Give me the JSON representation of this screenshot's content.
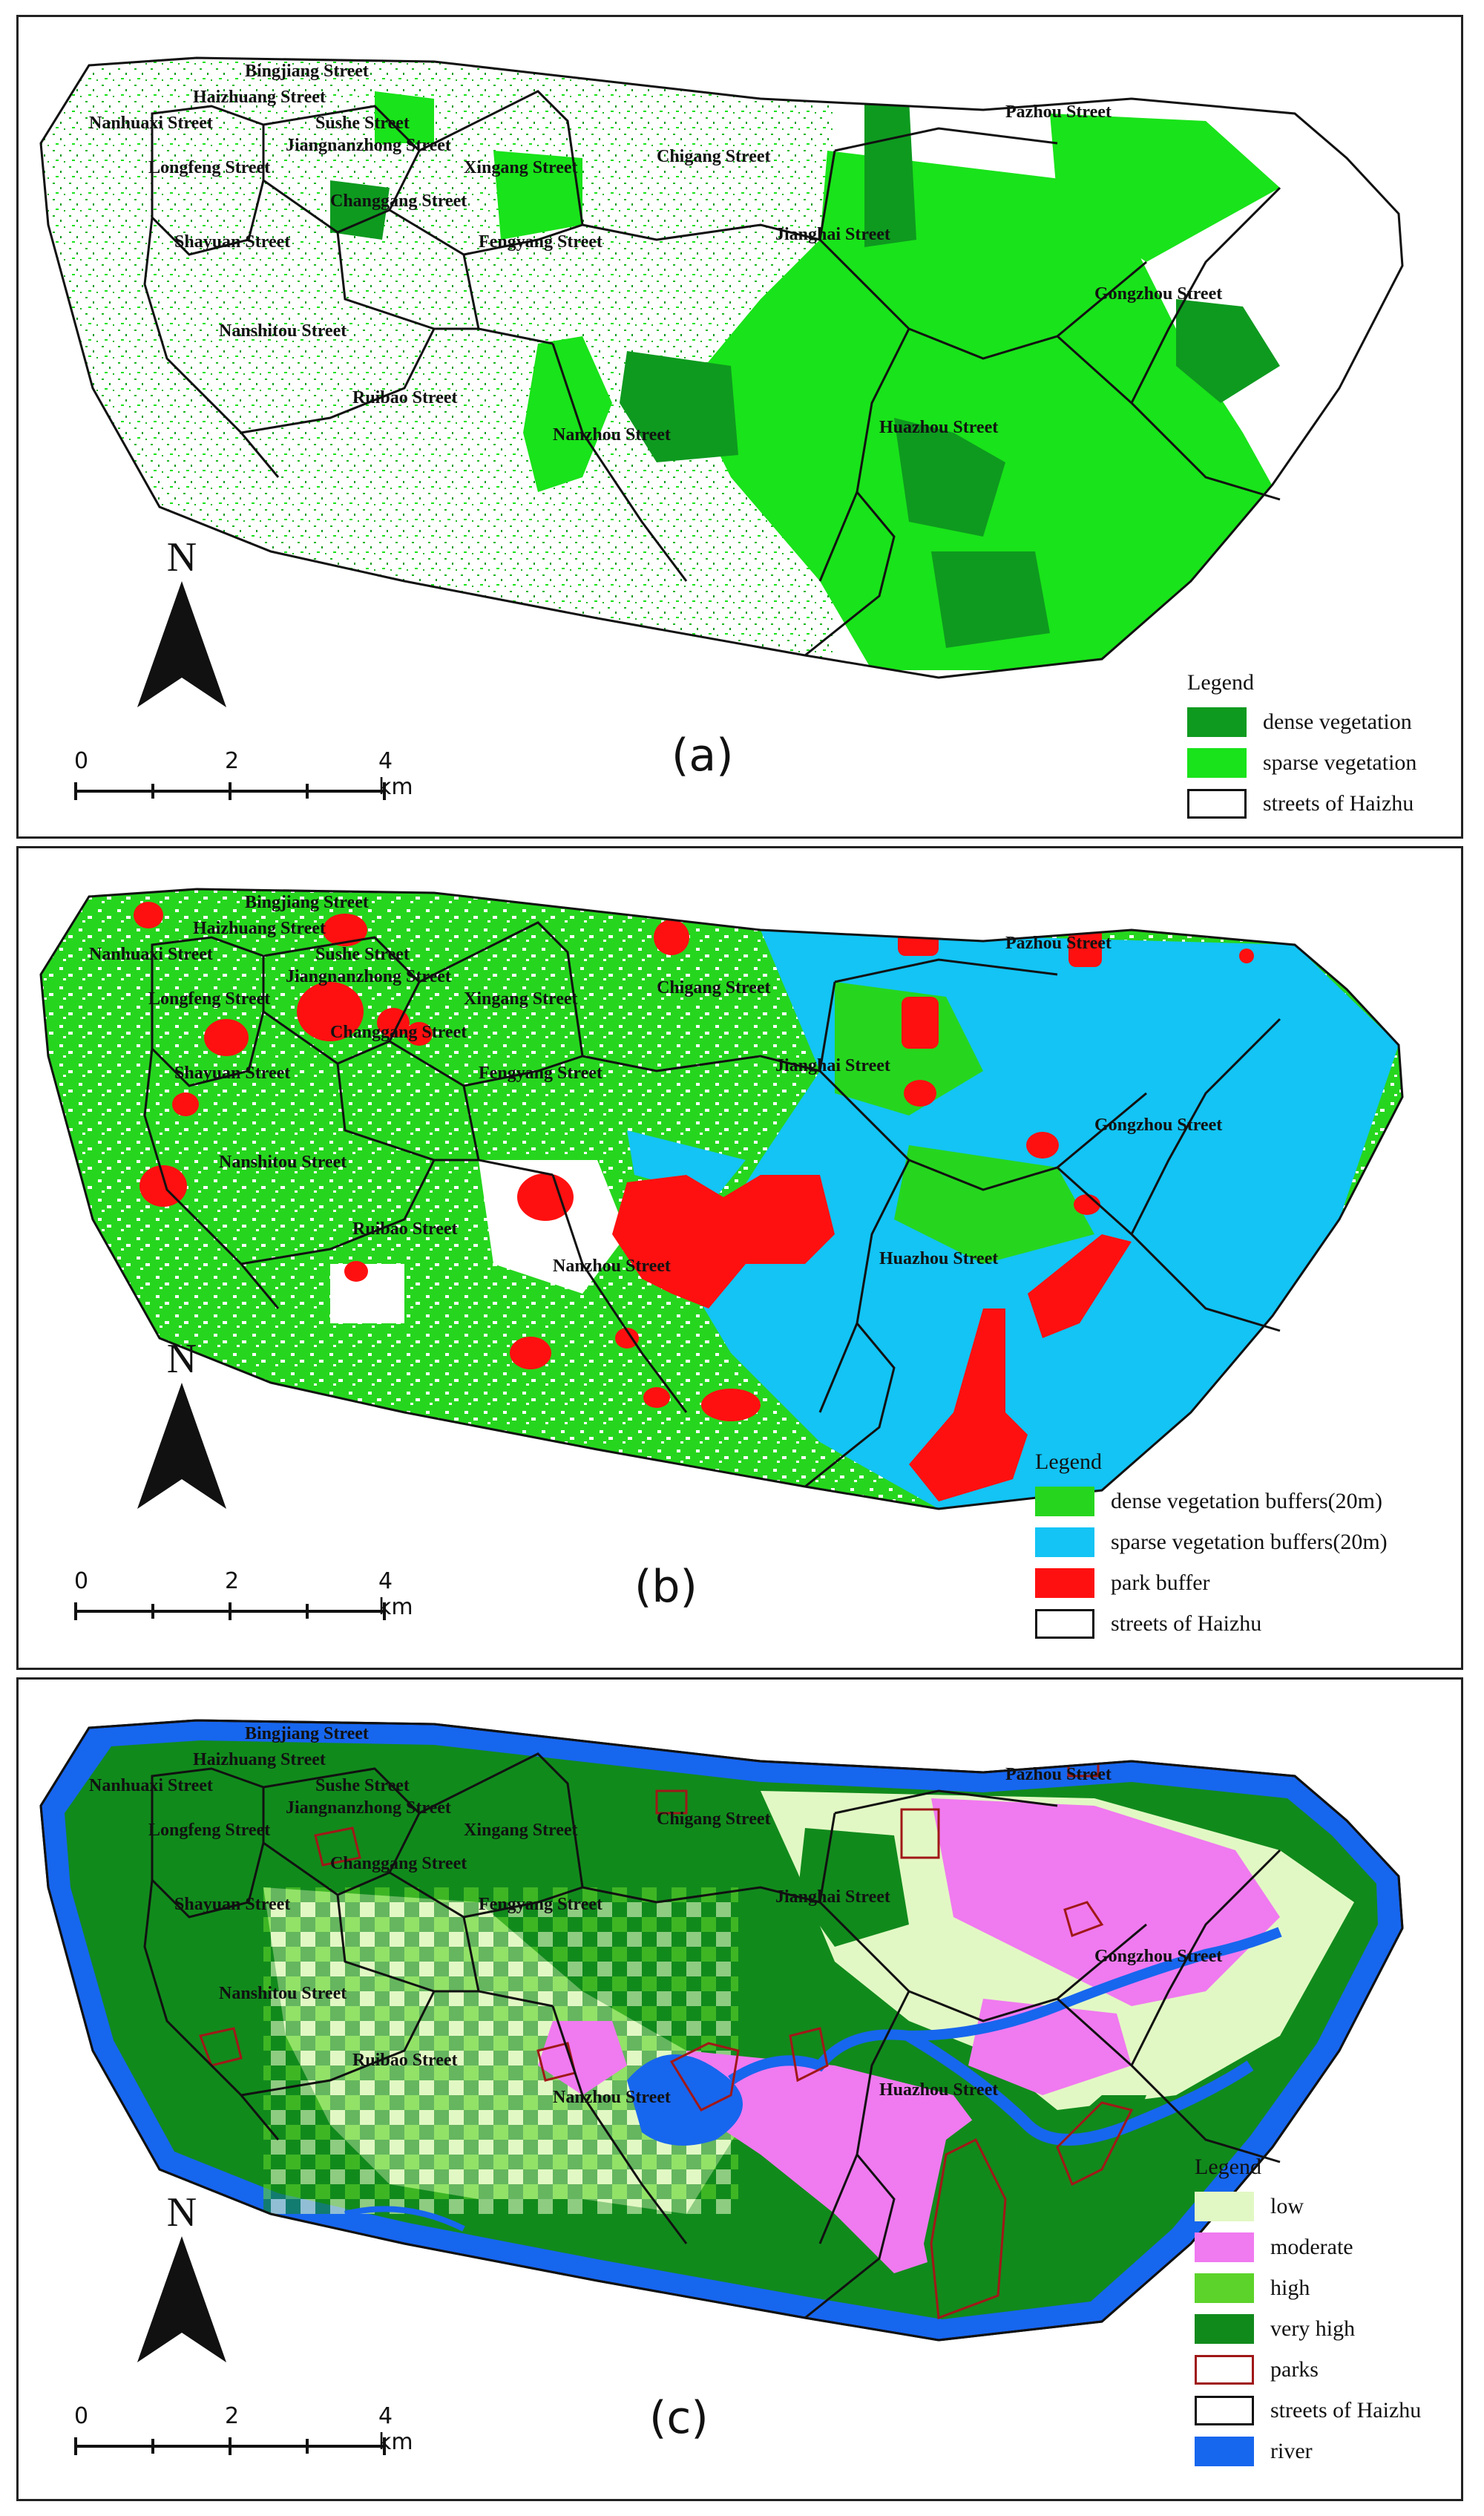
{
  "panels": [
    {
      "letter": "(a)",
      "north_label": "N",
      "scale": {
        "ticks": [
          "0",
          "2",
          "4 km"
        ]
      },
      "legend": {
        "title": "Legend",
        "items": [
          {
            "label": "dense vegetation",
            "color": "#0e9a1f",
            "outline": false
          },
          {
            "label": "sparse vegetation",
            "color": "#19e31a",
            "outline": false
          },
          {
            "label": "streets of Haizhu",
            "color": "#ffffff",
            "outline": true
          }
        ]
      },
      "streets": [
        "Bingjiang Street",
        "Haizhuang Street",
        "Nanhuaxi Street",
        "Sushe Street",
        "Jiangnanzhong Street",
        "Longfeng Street",
        "Xingang Street",
        "Chigang Street",
        "Pazhou Street",
        "Changgang Street",
        "Shayuan Street",
        "Fengyang Street",
        "Jianghai Street",
        "Gongzhou Street",
        "Nanshitou Street",
        "Ruibao Street",
        "Nanzhou Street",
        "Huazhou Street"
      ]
    },
    {
      "letter": "(b)",
      "north_label": "N",
      "scale": {
        "ticks": [
          "0",
          "2",
          "4 km"
        ]
      },
      "legend": {
        "title": "Legend",
        "items": [
          {
            "label": "dense vegetation buffers(20m)",
            "color": "#26d61e",
            "outline": false
          },
          {
            "label": "sparse vegetation buffers(20m)",
            "color": "#13c4f5",
            "outline": false
          },
          {
            "label": "park buffer",
            "color": "#ff1010",
            "outline": false
          },
          {
            "label": "streets of Haizhu",
            "color": "#ffffff",
            "outline": true
          }
        ]
      },
      "streets": [
        "Bingjiang Street",
        "Haizhuang Street",
        "Nanhuaxi Street",
        "Sushe Street",
        "Jiangnanzhong Street",
        "Longfeng Street",
        "Xingang Street",
        "Chigang Street",
        "Pazhou Street",
        "Changgang Street",
        "Shayuan Street",
        "Fengyang Street",
        "Jianghai Street",
        "Gongzhou Street",
        "Nanshitou Street",
        "Ruibao Street",
        "Nanzhou Street",
        "Huazhou Street"
      ]
    },
    {
      "letter": "(c)",
      "north_label": "N",
      "scale": {
        "ticks": [
          "0",
          "2",
          "4 km"
        ]
      },
      "legend": {
        "title": "Legend",
        "items": [
          {
            "label": "low",
            "color": "#e2f8c4",
            "outline": false
          },
          {
            "label": "moderate",
            "color": "#f07af0",
            "outline": false
          },
          {
            "label": "high",
            "color": "#5cd32a",
            "outline": false
          },
          {
            "label": "very high",
            "color": "#118a1c",
            "outline": false
          },
          {
            "label": "parks",
            "color": "#ffffff",
            "outline": true,
            "outline_color": "#a01818"
          },
          {
            "label": "streets of Haizhu",
            "color": "#ffffff",
            "outline": true
          },
          {
            "label": "river",
            "color": "#1766ee",
            "outline": false
          }
        ]
      },
      "streets": [
        "Bingjiang Street",
        "Haizhuang Street",
        "Nanhuaxi Street",
        "Sushe Street",
        "Jiangnanzhong Street",
        "Longfeng Street",
        "Xingang Street",
        "Chigang Street",
        "Pazhou Street",
        "Changgang Street",
        "Shayuan Street",
        "Fengyang Street",
        "Jianghai Street",
        "Gongzhou Street",
        "Nanshitou Street",
        "Ruibao Street",
        "Nanzhou Street",
        "Huazhou Street"
      ]
    }
  ]
}
